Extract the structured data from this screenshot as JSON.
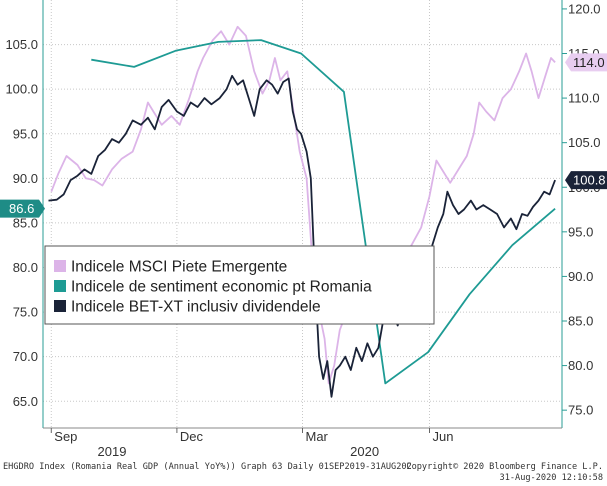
{
  "chart_data": {
    "type": "line",
    "title": "",
    "x_range": [
      "2019-08-26",
      "2020-09-05"
    ],
    "x_ticks": [
      {
        "label": "Sep",
        "date": "2019-09-01"
      },
      {
        "label": "Dec",
        "date": "2019-12-01"
      },
      {
        "label": "Mar",
        "date": "2020-03-01"
      },
      {
        "label": "Jun",
        "date": "2020-06-01"
      }
    ],
    "year_labels": [
      {
        "label": "2019",
        "date": "2019-10-15"
      },
      {
        "label": "2020",
        "date": "2020-04-15"
      }
    ],
    "left_axis": {
      "ylim": [
        62.0,
        110.0
      ],
      "ticks": [
        "65.0",
        "70.0",
        "75.0",
        "80.0",
        "85.0",
        "90.0",
        "95.0",
        "100.0",
        "105.0"
      ]
    },
    "right_axis": {
      "ylim": [
        73.0,
        121.0
      ],
      "ticks": [
        "75.0",
        "80.0",
        "85.0",
        "90.0",
        "95.0",
        "100.0",
        "105.0",
        "110.0",
        "115.0",
        "120.0"
      ]
    },
    "grid": true,
    "legend": {
      "placement": "lower-left",
      "entries": [
        {
          "label": "Indicele MSCI Piete Emergente",
          "color": "#dcb4e8"
        },
        {
          "label": "Indicele de sentiment economic pt Romania",
          "color": "#1e9b94"
        },
        {
          "label": "Indicele BET-XT inclusiv dividendele",
          "color": "#1a2338"
        }
      ]
    },
    "last_value_tags": [
      {
        "text": "114.0",
        "axis": "right",
        "value": 114.0,
        "bg": "#e8cdf0",
        "fg": "#222222"
      },
      {
        "text": "100.8",
        "axis": "right",
        "value": 100.8,
        "bg": "#1a2338",
        "fg": "#ffffff"
      },
      {
        "text": "86.6",
        "axis": "left",
        "value": 86.6,
        "bg": "#1e8c86",
        "fg": "#ffffff"
      }
    ],
    "series": [
      {
        "name": "Indicele MSCI Piete Emergente",
        "axis": "right",
        "color": "#dcb4e8",
        "points": [
          [
            "2019-09-01",
            99.5
          ],
          [
            "2019-09-06",
            101.5
          ],
          [
            "2019-09-12",
            103.5
          ],
          [
            "2019-09-16",
            103.0
          ],
          [
            "2019-09-20",
            102.5
          ],
          [
            "2019-09-26",
            101.0
          ],
          [
            "2019-10-02",
            100.8
          ],
          [
            "2019-10-08",
            100.2
          ],
          [
            "2019-10-15",
            102.0
          ],
          [
            "2019-10-22",
            103.2
          ],
          [
            "2019-10-30",
            104.0
          ],
          [
            "2019-11-05",
            106.5
          ],
          [
            "2019-11-10",
            109.5
          ],
          [
            "2019-11-14",
            108.5
          ],
          [
            "2019-11-20",
            107.0
          ],
          [
            "2019-11-27",
            108.0
          ],
          [
            "2019-12-03",
            107.0
          ],
          [
            "2019-12-10",
            110.0
          ],
          [
            "2019-12-16",
            113.0
          ],
          [
            "2019-12-20",
            114.5
          ],
          [
            "2019-12-27",
            116.5
          ],
          [
            "2020-01-02",
            117.5
          ],
          [
            "2020-01-08",
            116.0
          ],
          [
            "2020-01-14",
            118.0
          ],
          [
            "2020-01-20",
            117.0
          ],
          [
            "2020-01-26",
            113.0
          ],
          [
            "2020-02-01",
            110.5
          ],
          [
            "2020-02-06",
            112.0
          ],
          [
            "2020-02-10",
            114.5
          ],
          [
            "2020-02-14",
            112.0
          ],
          [
            "2020-02-19",
            113.0
          ],
          [
            "2020-02-24",
            108.0
          ],
          [
            "2020-02-28",
            104.0
          ],
          [
            "2020-03-04",
            101.0
          ],
          [
            "2020-03-09",
            90.0
          ],
          [
            "2020-03-13",
            86.0
          ],
          [
            "2020-03-17",
            83.0
          ],
          [
            "2020-03-20",
            78.0
          ],
          [
            "2020-03-24",
            80.0
          ],
          [
            "2020-03-28",
            84.0
          ],
          [
            "2020-04-02",
            86.0
          ],
          [
            "2020-04-08",
            88.0
          ],
          [
            "2020-04-15",
            89.0
          ],
          [
            "2020-04-21",
            89.5
          ],
          [
            "2020-04-28",
            92.5
          ],
          [
            "2020-05-05",
            91.5
          ],
          [
            "2020-05-12",
            92.0
          ],
          [
            "2020-05-19",
            93.5
          ],
          [
            "2020-05-26",
            95.5
          ],
          [
            "2020-06-01",
            99.0
          ],
          [
            "2020-06-06",
            103.0
          ],
          [
            "2020-06-10",
            102.0
          ],
          [
            "2020-06-16",
            100.5
          ],
          [
            "2020-06-22",
            102.0
          ],
          [
            "2020-06-28",
            103.5
          ],
          [
            "2020-07-03",
            106.0
          ],
          [
            "2020-07-07",
            109.5
          ],
          [
            "2020-07-12",
            108.5
          ],
          [
            "2020-07-18",
            107.5
          ],
          [
            "2020-07-24",
            110.0
          ],
          [
            "2020-07-30",
            111.0
          ],
          [
            "2020-08-05",
            113.0
          ],
          [
            "2020-08-10",
            115.0
          ],
          [
            "2020-08-14",
            113.0
          ],
          [
            "2020-08-19",
            110.0
          ],
          [
            "2020-08-24",
            112.5
          ],
          [
            "2020-08-28",
            114.5
          ],
          [
            "2020-08-31",
            114.0
          ]
        ]
      },
      {
        "name": "Indicele de sentiment economic pt Romania",
        "axis": "left",
        "color": "#1e9b94",
        "points": [
          [
            "2019-09-30",
            103.3
          ],
          [
            "2019-10-31",
            102.5
          ],
          [
            "2019-11-30",
            104.3
          ],
          [
            "2019-12-31",
            105.3
          ],
          [
            "2020-01-31",
            105.5
          ],
          [
            "2020-02-29",
            104.0
          ],
          [
            "2020-03-31",
            99.7
          ],
          [
            "2020-04-30",
            67.0
          ],
          [
            "2020-05-31",
            70.5
          ],
          [
            "2020-06-30",
            77.0
          ],
          [
            "2020-07-31",
            82.5
          ],
          [
            "2020-08-31",
            86.6
          ]
        ]
      },
      {
        "name": "Indicele BET-XT inclusiv dividendele",
        "axis": "right",
        "color": "#1a2338",
        "points": [
          [
            "2019-08-30",
            98.5
          ],
          [
            "2019-09-05",
            98.6
          ],
          [
            "2019-09-10",
            99.2
          ],
          [
            "2019-09-15",
            100.8
          ],
          [
            "2019-09-20",
            101.3
          ],
          [
            "2019-09-25",
            102.0
          ],
          [
            "2019-09-30",
            101.5
          ],
          [
            "2019-10-05",
            103.5
          ],
          [
            "2019-10-10",
            104.2
          ],
          [
            "2019-10-15",
            105.4
          ],
          [
            "2019-10-20",
            105.0
          ],
          [
            "2019-10-25",
            106.0
          ],
          [
            "2019-10-30",
            107.5
          ],
          [
            "2019-11-05",
            107.0
          ],
          [
            "2019-11-10",
            107.8
          ],
          [
            "2019-11-15",
            106.5
          ],
          [
            "2019-11-20",
            109.0
          ],
          [
            "2019-11-25",
            109.8
          ],
          [
            "2019-12-01",
            108.5
          ],
          [
            "2019-12-06",
            108.0
          ],
          [
            "2019-12-11",
            109.5
          ],
          [
            "2019-12-16",
            109.0
          ],
          [
            "2019-12-21",
            110.0
          ],
          [
            "2019-12-26",
            109.3
          ],
          [
            "2020-01-01",
            110.0
          ],
          [
            "2020-01-06",
            111.0
          ],
          [
            "2020-01-10",
            112.5
          ],
          [
            "2020-01-14",
            111.5
          ],
          [
            "2020-01-18",
            112.0
          ],
          [
            "2020-01-22",
            110.0
          ],
          [
            "2020-01-26",
            108.0
          ],
          [
            "2020-01-30",
            111.0
          ],
          [
            "2020-02-04",
            112.0
          ],
          [
            "2020-02-08",
            111.5
          ],
          [
            "2020-02-12",
            110.5
          ],
          [
            "2020-02-16",
            111.8
          ],
          [
            "2020-02-20",
            112.2
          ],
          [
            "2020-02-23",
            108.5
          ],
          [
            "2020-02-26",
            106.5
          ],
          [
            "2020-02-29",
            106.0
          ],
          [
            "2020-03-04",
            104.0
          ],
          [
            "2020-03-07",
            101.0
          ],
          [
            "2020-03-10",
            90.0
          ],
          [
            "2020-03-13",
            81.0
          ],
          [
            "2020-03-16",
            78.5
          ],
          [
            "2020-03-19",
            80.5
          ],
          [
            "2020-03-22",
            76.5
          ],
          [
            "2020-03-25",
            79.5
          ],
          [
            "2020-03-28",
            80.0
          ],
          [
            "2020-04-01",
            81.0
          ],
          [
            "2020-04-05",
            79.5
          ],
          [
            "2020-04-09",
            82.0
          ],
          [
            "2020-04-13",
            80.5
          ],
          [
            "2020-04-17",
            82.5
          ],
          [
            "2020-04-21",
            81.0
          ],
          [
            "2020-04-25",
            82.0
          ],
          [
            "2020-04-29",
            85.5
          ],
          [
            "2020-05-04",
            86.5
          ],
          [
            "2020-05-09",
            84.5
          ],
          [
            "2020-05-14",
            87.0
          ],
          [
            "2020-05-19",
            89.0
          ],
          [
            "2020-05-24",
            90.5
          ],
          [
            "2020-05-29",
            89.5
          ],
          [
            "2020-06-03",
            93.5
          ],
          [
            "2020-06-07",
            95.5
          ],
          [
            "2020-06-11",
            97.0
          ],
          [
            "2020-06-14",
            99.5
          ],
          [
            "2020-06-18",
            98.0
          ],
          [
            "2020-06-22",
            97.0
          ],
          [
            "2020-06-26",
            97.5
          ],
          [
            "2020-07-01",
            98.5
          ],
          [
            "2020-07-05",
            97.5
          ],
          [
            "2020-07-10",
            98.0
          ],
          [
            "2020-07-15",
            97.5
          ],
          [
            "2020-07-20",
            97.0
          ],
          [
            "2020-07-25",
            95.5
          ],
          [
            "2020-07-30",
            96.5
          ],
          [
            "2020-08-03",
            95.3
          ],
          [
            "2020-08-07",
            97.0
          ],
          [
            "2020-08-11",
            96.8
          ],
          [
            "2020-08-15",
            97.8
          ],
          [
            "2020-08-19",
            98.5
          ],
          [
            "2020-08-23",
            99.5
          ],
          [
            "2020-08-27",
            99.2
          ],
          [
            "2020-08-31",
            100.8
          ]
        ]
      }
    ]
  },
  "footer": {
    "left": "EHGDRO Index (Romania Real GDP (Annual YoY%)) Graph 63  Daily 01SEP2019-31AUG202",
    "right_line1": "Copyright© 2020 Bloomberg Finance L.P.",
    "right_line2": "31-Aug-2020 12:10:58"
  }
}
